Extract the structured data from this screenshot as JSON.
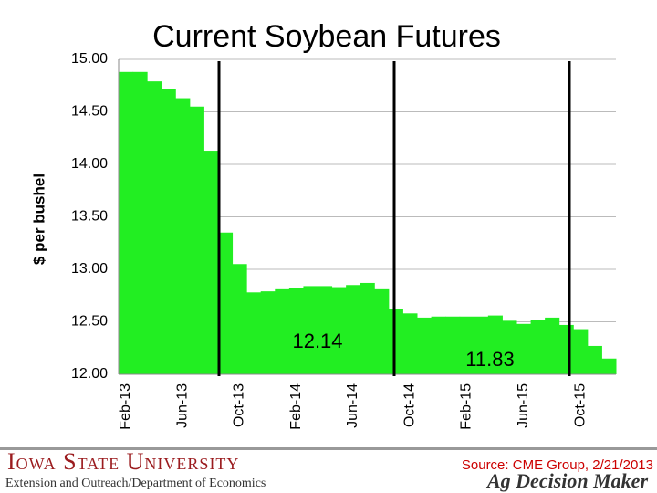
{
  "chart_data": {
    "type": "bar",
    "title": "Current Soybean Futures",
    "y_label": "$ per bushel",
    "categories": [
      "Feb-13",
      null,
      null,
      null,
      "Jun-13",
      null,
      null,
      null,
      "Oct-13",
      null,
      null,
      null,
      "Feb-14",
      null,
      null,
      null,
      "Jun-14",
      null,
      null,
      null,
      "Oct-14",
      null,
      null,
      null,
      "Feb-15",
      null,
      null,
      null,
      "Jun-15",
      null,
      null,
      null,
      "Oct-15",
      null,
      null
    ],
    "values": [
      14.88,
      14.88,
      14.79,
      14.72,
      14.63,
      14.55,
      14.13,
      13.35,
      13.05,
      12.78,
      12.79,
      12.81,
      12.82,
      12.84,
      12.84,
      12.83,
      12.85,
      12.87,
      12.81,
      12.62,
      12.58,
      12.54,
      12.55,
      12.55,
      12.55,
      12.55,
      12.56,
      12.51,
      12.48,
      12.52,
      12.54,
      12.47,
      12.43,
      12.27,
      12.15
    ],
    "color": "#22ee22",
    "ylim": [
      12,
      15
    ],
    "yticks": [
      {
        "value": 12,
        "label": "12.00"
      },
      {
        "value": 12.5,
        "label": "12.50"
      },
      {
        "value": 13,
        "label": "13.00"
      },
      {
        "value": 13.5,
        "label": "13.50"
      },
      {
        "value": 14,
        "label": "14.00"
      },
      {
        "value": 14.5,
        "label": "14.50"
      },
      {
        "value": 15,
        "label": "15.00"
      }
    ],
    "grid": true,
    "annotations": [
      "12.14",
      "11.83"
    ]
  },
  "footer": {
    "university": "Iowa State University",
    "department": "Extension and Outreach/Department of Economics",
    "source": "Source: CME Group, 2/21/2013",
    "brand": "Ag Decision Maker"
  }
}
